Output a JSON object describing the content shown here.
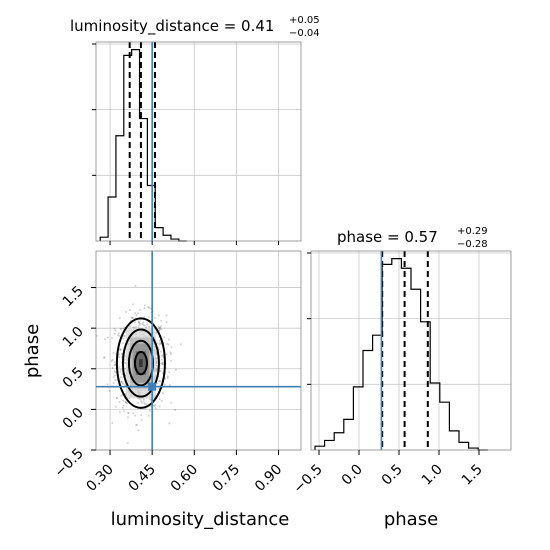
{
  "chart_data": [
    {
      "type": "bar",
      "panel": "luminosity_distance-histogram",
      "title_main": "luminosity_distance = 0.41",
      "title_plus": "+0.05",
      "title_minus": "−0.04",
      "xlim": [
        0.25,
        0.98
      ],
      "bin_edges": [
        0.265,
        0.293,
        0.321,
        0.349,
        0.377,
        0.405,
        0.433,
        0.461,
        0.489,
        0.517,
        0.545,
        0.573
      ],
      "counts": [
        0.02,
        0.23,
        0.55,
        0.97,
        1.0,
        0.64,
        0.29,
        0.07,
        0.03,
        0.01,
        0.0
      ],
      "quantiles": [
        0.37,
        0.41,
        0.46
      ],
      "truth": 0.45,
      "ylim": [
        0,
        1.04
      ]
    },
    {
      "type": "scatter",
      "panel": "2d-density",
      "xlabel": "luminosity_distance",
      "ylabel": "phase",
      "xlim": [
        0.25,
        0.98
      ],
      "ylim": [
        -0.5,
        1.95
      ],
      "xticks": [
        "0.30",
        "0.45",
        "0.60",
        "0.75",
        "0.90"
      ],
      "xtick_values": [
        0.3,
        0.45,
        0.6,
        0.75,
        0.9
      ],
      "yticks": [
        "−0.5",
        "0.0",
        "0.5",
        "1.0",
        "1.5"
      ],
      "ytick_values": [
        -0.5,
        0.0,
        0.5,
        1.0,
        1.5
      ],
      "center": [
        0.41,
        0.57
      ],
      "spread": [
        0.045,
        0.29
      ],
      "truth": [
        0.45,
        0.28
      ],
      "contour_levels_sigma": [
        0.5,
        1.0,
        1.5,
        2.0
      ]
    },
    {
      "type": "bar",
      "panel": "phase-histogram",
      "title_main": "phase = 0.57",
      "title_plus": "+0.29",
      "title_minus": "−0.28",
      "xlabel": "phase",
      "xlim": [
        -0.6,
        1.9
      ],
      "xticks": [
        "−0.5",
        "0.0",
        "0.5",
        "1.0",
        "1.5"
      ],
      "xtick_values": [
        -0.5,
        0.0,
        0.5,
        1.0,
        1.5
      ],
      "bin_edges": [
        -0.55,
        -0.43,
        -0.31,
        -0.19,
        -0.07,
        0.05,
        0.17,
        0.29,
        0.41,
        0.53,
        0.65,
        0.77,
        0.89,
        1.01,
        1.13,
        1.25,
        1.37,
        1.49,
        1.61
      ],
      "counts": [
        0.02,
        0.05,
        0.09,
        0.16,
        0.33,
        0.52,
        0.6,
        0.97,
        1.0,
        0.95,
        0.84,
        0.67,
        0.35,
        0.25,
        0.1,
        0.04,
        0.01,
        0.0
      ],
      "quantiles": [
        0.29,
        0.57,
        0.86
      ],
      "truth": 0.28,
      "ylim": [
        0,
        1.04
      ]
    }
  ]
}
